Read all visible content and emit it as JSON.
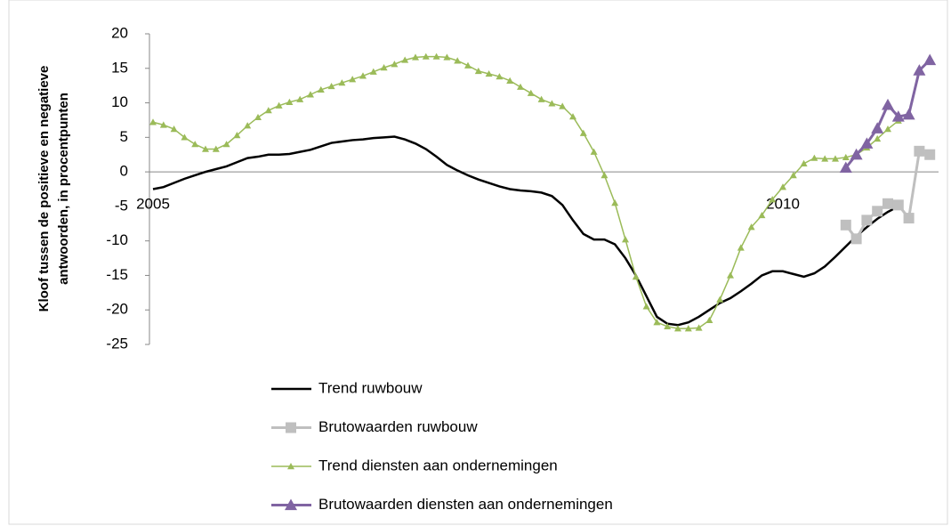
{
  "chart_data": {
    "type": "line",
    "y_label": [
      "Kloof tussen de positieve en negatieve",
      "antwoorden, in procentpunten"
    ],
    "categories": [
      "2005",
      null,
      null,
      null,
      null,
      null,
      null,
      null,
      null,
      null,
      null,
      null,
      null,
      null,
      null,
      null,
      null,
      null,
      null,
      null,
      null,
      null,
      null,
      null,
      null,
      null,
      null,
      null,
      null,
      null,
      null,
      null,
      null,
      null,
      null,
      null,
      null,
      null,
      null,
      null,
      null,
      null,
      null,
      null,
      null,
      null,
      null,
      null,
      null,
      null,
      null,
      null,
      null,
      null,
      null,
      null,
      null,
      null,
      null,
      null,
      "2010",
      null,
      null,
      null,
      null,
      null,
      null,
      null,
      null,
      null,
      null,
      null,
      null,
      null,
      null
    ],
    "ylim": [
      -25,
      20
    ],
    "yticks": [
      -25,
      -20,
      -15,
      -10,
      -5,
      0,
      5,
      10,
      15,
      20
    ],
    "series": [
      {
        "name": "Trend ruwbouw",
        "color": "#000000",
        "marker": "none",
        "values": [
          -2.5,
          -2.2,
          -1.6,
          -1.0,
          -0.5,
          0.0,
          0.4,
          0.8,
          1.4,
          2.0,
          2.2,
          2.5,
          2.5,
          2.6,
          2.9,
          3.2,
          3.7,
          4.2,
          4.4,
          4.6,
          4.7,
          4.9,
          5.0,
          5.1,
          4.7,
          4.1,
          3.3,
          2.2,
          1.0,
          0.2,
          -0.5,
          -1.1,
          -1.6,
          -2.1,
          -2.5,
          -2.7,
          -2.8,
          -3.0,
          -3.5,
          -4.8,
          -7.0,
          -9.0,
          -9.8,
          -9.8,
          -10.5,
          -12.5,
          -15.0,
          -18.0,
          -21.0,
          -22.0,
          -22.2,
          -21.8,
          -21.0,
          -20.0,
          -19.0,
          -18.3,
          -17.3,
          -16.2,
          -15.0,
          -14.4,
          -14.4,
          -14.8,
          -15.2,
          -14.7,
          -13.7,
          -12.3,
          -10.8,
          -9.3,
          -8.0,
          -6.8,
          -5.8,
          -5.0,
          null,
          null,
          null
        ]
      },
      {
        "name": "Brutowaarden ruwbouw",
        "color": "#bfbfbf",
        "marker": "square",
        "values": [
          null,
          null,
          null,
          null,
          null,
          null,
          null,
          null,
          null,
          null,
          null,
          null,
          null,
          null,
          null,
          null,
          null,
          null,
          null,
          null,
          null,
          null,
          null,
          null,
          null,
          null,
          null,
          null,
          null,
          null,
          null,
          null,
          null,
          null,
          null,
          null,
          null,
          null,
          null,
          null,
          null,
          null,
          null,
          null,
          null,
          null,
          null,
          null,
          null,
          null,
          null,
          null,
          null,
          null,
          null,
          null,
          null,
          null,
          null,
          null,
          null,
          null,
          null,
          null,
          null,
          null,
          -7.7,
          -9.7,
          -7.0,
          -5.7,
          -4.6,
          -4.8,
          -6.7,
          3.0,
          2.5
        ]
      },
      {
        "name": "Trend diensten aan ondernemingen",
        "color": "#9bbb59",
        "marker": "triangle",
        "values": [
          7.2,
          6.8,
          6.2,
          5.0,
          4.0,
          3.3,
          3.3,
          4.0,
          5.3,
          6.7,
          7.9,
          8.9,
          9.6,
          10.1,
          10.5,
          11.2,
          11.9,
          12.4,
          12.9,
          13.4,
          13.9,
          14.5,
          15.1,
          15.6,
          16.2,
          16.6,
          16.7,
          16.7,
          16.6,
          16.1,
          15.4,
          14.6,
          14.2,
          13.8,
          13.2,
          12.3,
          11.4,
          10.5,
          9.9,
          9.5,
          8.0,
          5.6,
          2.9,
          -0.5,
          -4.5,
          -9.8,
          -15.2,
          -19.5,
          -21.8,
          -22.4,
          -22.7,
          -22.7,
          -22.6,
          -21.5,
          -18.5,
          -15.0,
          -11.0,
          -8.0,
          -6.3,
          -4.0,
          -2.2,
          -0.5,
          1.2,
          2.0,
          1.9,
          1.9,
          2.1,
          2.5,
          3.5,
          4.8,
          6.2,
          7.4,
          null,
          null,
          null
        ]
      },
      {
        "name": "Brutowaarden diensten aan ondernemingen",
        "color": "#8064a2",
        "marker": "triangle-large",
        "values": [
          null,
          null,
          null,
          null,
          null,
          null,
          null,
          null,
          null,
          null,
          null,
          null,
          null,
          null,
          null,
          null,
          null,
          null,
          null,
          null,
          null,
          null,
          null,
          null,
          null,
          null,
          null,
          null,
          null,
          null,
          null,
          null,
          null,
          null,
          null,
          null,
          null,
          null,
          null,
          null,
          null,
          null,
          null,
          null,
          null,
          null,
          null,
          null,
          null,
          null,
          null,
          null,
          null,
          null,
          null,
          null,
          null,
          null,
          null,
          null,
          null,
          null,
          null,
          null,
          null,
          null,
          0.6,
          2.5,
          4.1,
          6.3,
          9.7,
          8.0,
          8.3,
          14.7,
          16.2
        ]
      }
    ]
  }
}
